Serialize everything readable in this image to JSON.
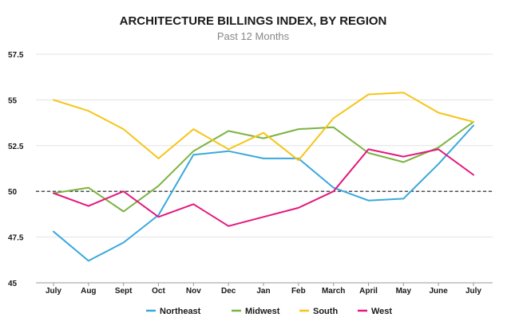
{
  "chart_data": {
    "type": "line",
    "title": "ARCHITECTURE BILLINGS INDEX, BY REGION",
    "subtitle": "Past 12 Months",
    "xlabel": "",
    "ylabel": "",
    "categories": [
      "July",
      "Aug",
      "Sept",
      "Oct",
      "Nov",
      "Dec",
      "Jan",
      "Feb",
      "March",
      "April",
      "May",
      "June",
      "July"
    ],
    "ylim": [
      45,
      57.5
    ],
    "yticks": [
      45,
      47.5,
      50,
      52.5,
      55,
      57.5
    ],
    "ytick_labels": [
      "45",
      "47.5",
      "50",
      "52.5",
      "55",
      "57.5"
    ],
    "reference_line": 50,
    "grid": true,
    "legend_position": "bottom",
    "series": [
      {
        "name": "Northeast",
        "color": "#3aa8dc",
        "values": [
          47.8,
          46.2,
          47.2,
          48.7,
          52.0,
          52.2,
          51.8,
          51.8,
          50.2,
          49.5,
          49.6,
          51.5,
          53.6
        ]
      },
      {
        "name": "Midwest",
        "color": "#7cb342",
        "values": [
          49.9,
          50.2,
          48.9,
          50.3,
          52.2,
          53.3,
          52.9,
          53.4,
          53.5,
          52.1,
          51.6,
          52.4,
          53.8
        ]
      },
      {
        "name": "South",
        "color": "#f5c518",
        "values": [
          55.0,
          54.4,
          53.4,
          51.8,
          53.4,
          52.3,
          53.2,
          51.7,
          54.0,
          55.3,
          55.4,
          54.3,
          53.8
        ]
      },
      {
        "name": "West",
        "color": "#e3197d",
        "values": [
          49.9,
          49.2,
          50.0,
          48.6,
          49.3,
          48.1,
          48.6,
          49.1,
          50.0,
          52.3,
          51.9,
          52.3,
          50.9
        ]
      }
    ]
  }
}
